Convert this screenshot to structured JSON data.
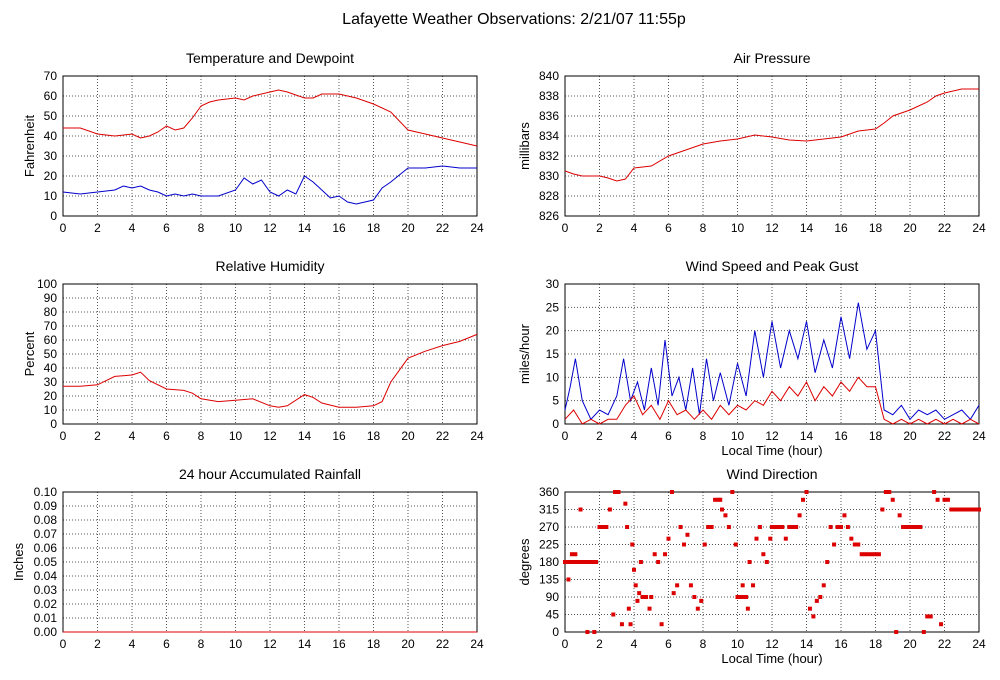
{
  "page": {
    "title": "Lafayette Weather Observations: 2/21/07 11:55p"
  },
  "chart_data": [
    {
      "id": "temp",
      "type": "line",
      "title": "Temperature and Dewpoint",
      "xlabel": "",
      "ylabel": "Fahrenheit",
      "xlim": [
        0,
        24
      ],
      "ylim": [
        0,
        70
      ],
      "xticks": [
        0,
        2,
        4,
        6,
        8,
        10,
        12,
        14,
        16,
        18,
        20,
        22,
        24
      ],
      "yticks": [
        0,
        10,
        20,
        30,
        40,
        50,
        60,
        70
      ],
      "ytick_labels": [
        "0",
        "10",
        "20",
        "30",
        "40",
        "50",
        "60",
        "70"
      ],
      "grid": true,
      "series": [
        {
          "color": "#dd0000",
          "x": [
            0,
            1,
            2,
            3,
            4,
            4.5,
            5,
            5.5,
            6,
            6.5,
            7,
            7.5,
            8,
            8.5,
            9,
            10,
            10.5,
            11,
            12,
            12.5,
            13,
            14,
            14.5,
            15,
            16,
            17,
            18,
            19,
            20,
            21,
            22,
            23,
            24
          ],
          "y": [
            44,
            44,
            41,
            40,
            41,
            39,
            40,
            42,
            45,
            43,
            44,
            49,
            55,
            57,
            58,
            59,
            58,
            60,
            62,
            63,
            62,
            59,
            59,
            61,
            61,
            59,
            56,
            52,
            43,
            41,
            39,
            37,
            35
          ]
        },
        {
          "color": "#0000cc",
          "x": [
            0,
            1,
            2,
            3,
            3.5,
            4,
            4.5,
            5,
            5.5,
            6,
            6.5,
            7,
            7.5,
            8,
            9,
            10,
            10.5,
            11,
            11.5,
            12,
            12.5,
            13,
            13.5,
            14,
            14.5,
            15,
            15.5,
            16,
            16.5,
            17,
            17.5,
            18,
            18.5,
            19,
            20,
            21,
            22,
            23,
            24
          ],
          "y": [
            12,
            11,
            12,
            13,
            15,
            14,
            15,
            13,
            12,
            10,
            11,
            10,
            11,
            10,
            10,
            13,
            19,
            16,
            18,
            12,
            10,
            13,
            11,
            20,
            17,
            13,
            9,
            10,
            7,
            6,
            7,
            8,
            14,
            17,
            24,
            24,
            25,
            24,
            24
          ]
        }
      ]
    },
    {
      "id": "press",
      "type": "line",
      "title": "Air Pressure",
      "xlabel": "",
      "ylabel": "millibars",
      "xlim": [
        0,
        24
      ],
      "ylim": [
        826,
        840
      ],
      "xticks": [
        0,
        2,
        4,
        6,
        8,
        10,
        12,
        14,
        16,
        18,
        20,
        22,
        24
      ],
      "yticks": [
        826,
        828,
        830,
        832,
        834,
        836,
        838,
        840
      ],
      "ytick_labels": [
        "826",
        "828",
        "830",
        "832",
        "834",
        "836",
        "838",
        "840"
      ],
      "grid": true,
      "series": [
        {
          "color": "#dd0000",
          "x": [
            0,
            0.5,
            1,
            2,
            2.5,
            3,
            3.5,
            4,
            5,
            6,
            7,
            8,
            9,
            10,
            11,
            12,
            13,
            14,
            15,
            16,
            17,
            18,
            18.5,
            19,
            20,
            21,
            21.5,
            22,
            23,
            24
          ],
          "y": [
            830.5,
            830.2,
            830.0,
            830.0,
            829.8,
            829.5,
            829.7,
            830.8,
            831.0,
            832.0,
            832.6,
            833.2,
            833.5,
            833.7,
            834.1,
            833.9,
            833.6,
            833.5,
            833.7,
            833.9,
            834.5,
            834.7,
            835.3,
            836.0,
            836.6,
            837.4,
            838.0,
            838.3,
            838.7,
            838.7
          ]
        }
      ]
    },
    {
      "id": "rh",
      "type": "line",
      "title": "Relative Humidity",
      "xlabel": "",
      "ylabel": "Percent",
      "xlim": [
        0,
        24
      ],
      "ylim": [
        0,
        100
      ],
      "xticks": [
        0,
        2,
        4,
        6,
        8,
        10,
        12,
        14,
        16,
        18,
        20,
        22,
        24
      ],
      "yticks": [
        0,
        10,
        20,
        30,
        40,
        50,
        60,
        70,
        80,
        90,
        100
      ],
      "ytick_labels": [
        "0",
        "10",
        "20",
        "30",
        "40",
        "50",
        "60",
        "70",
        "80",
        "90",
        "100"
      ],
      "grid": true,
      "series": [
        {
          "color": "#dd0000",
          "x": [
            0,
            1,
            2,
            3,
            4,
            4.5,
            5,
            6,
            7,
            7.5,
            8,
            9,
            10,
            11,
            12,
            12.5,
            13,
            14,
            14.5,
            15,
            16,
            17,
            18,
            18.5,
            19,
            20,
            21,
            22,
            23,
            24
          ],
          "y": [
            27,
            27,
            28,
            34,
            35,
            37,
            31,
            25,
            24,
            22,
            18,
            16,
            17,
            18,
            13,
            12,
            13,
            21,
            19,
            15,
            12,
            12,
            13,
            16,
            30,
            47,
            52,
            56,
            59,
            64
          ]
        }
      ]
    },
    {
      "id": "wind",
      "type": "line",
      "title": "Wind Speed and Peak Gust",
      "xlabel": "Local Time (hour)",
      "ylabel": "miles/hour",
      "xlim": [
        0,
        24
      ],
      "ylim": [
        0,
        30
      ],
      "xticks": [
        0,
        2,
        4,
        6,
        8,
        10,
        12,
        14,
        16,
        18,
        20,
        22,
        24
      ],
      "yticks": [
        0,
        5,
        10,
        15,
        20,
        25,
        30
      ],
      "ytick_labels": [
        "0",
        "5",
        "10",
        "15",
        "20",
        "25",
        "30"
      ],
      "grid": true,
      "series": [
        {
          "color": "#0000cc",
          "x": [
            0,
            0.3,
            0.6,
            1,
            1.5,
            2,
            2.5,
            3,
            3.4,
            3.8,
            4.2,
            4.6,
            5,
            5.4,
            5.8,
            6.2,
            6.6,
            7,
            7.4,
            7.8,
            8.2,
            8.6,
            9,
            9.5,
            10,
            10.5,
            11,
            11.5,
            12,
            12.5,
            13,
            13.5,
            14,
            14.5,
            15,
            15.5,
            16,
            16.5,
            17,
            17.5,
            18,
            18.5,
            19,
            19.5,
            20,
            20.5,
            21,
            21.5,
            22,
            22.5,
            23,
            23.5,
            24
          ],
          "y": [
            3,
            8,
            14,
            5,
            1,
            3,
            2,
            6,
            14,
            5,
            9,
            3,
            12,
            4,
            18,
            6,
            10,
            3,
            12,
            2,
            14,
            5,
            11,
            4,
            13,
            6,
            20,
            10,
            22,
            12,
            20,
            14,
            22,
            11,
            18,
            12,
            23,
            14,
            26,
            16,
            20,
            3,
            2,
            4,
            1,
            3,
            2,
            3,
            1,
            2,
            3,
            1,
            4
          ]
        },
        {
          "color": "#dd0000",
          "x": [
            0,
            0.5,
            1,
            1.5,
            2,
            2.5,
            3,
            3.5,
            4,
            4.5,
            5,
            5.5,
            6,
            6.5,
            7,
            7.5,
            8,
            8.5,
            9,
            9.5,
            10,
            10.5,
            11,
            11.5,
            12,
            12.5,
            13,
            13.5,
            14,
            14.5,
            15,
            15.5,
            16,
            16.5,
            17,
            17.5,
            18,
            18.5,
            19,
            19.5,
            20,
            20.5,
            21,
            21.5,
            22,
            22.5,
            23,
            23.5,
            24
          ],
          "y": [
            1,
            3,
            0,
            1,
            0,
            1,
            1,
            4,
            6,
            2,
            4,
            1,
            5,
            2,
            3,
            1,
            3,
            1,
            4,
            2,
            4,
            3,
            5,
            4,
            7,
            5,
            8,
            6,
            9,
            5,
            8,
            6,
            9,
            7,
            10,
            8,
            8,
            1,
            0,
            1,
            0,
            1,
            0,
            1,
            0,
            1,
            0,
            1,
            0
          ]
        }
      ]
    },
    {
      "id": "rain",
      "type": "line",
      "title": "24 hour Accumulated Rainfall",
      "xlabel": "",
      "ylabel": "Inches",
      "xlim": [
        0,
        24
      ],
      "ylim": [
        0,
        0.1
      ],
      "xticks": [
        0,
        2,
        4,
        6,
        8,
        10,
        12,
        14,
        16,
        18,
        20,
        22,
        24
      ],
      "yticks": [
        0,
        0.01,
        0.02,
        0.03,
        0.04,
        0.05,
        0.06,
        0.07,
        0.08,
        0.09,
        0.1
      ],
      "ytick_labels": [
        "0.00",
        "0.01",
        "0.02",
        "0.03",
        "0.04",
        "0.05",
        "0.06",
        "0.07",
        "0.08",
        "0.09",
        "0.10"
      ],
      "grid": true,
      "series": [
        {
          "color": "#dd0000",
          "x": [
            0,
            24
          ],
          "y": [
            0,
            0
          ]
        }
      ]
    },
    {
      "id": "dir",
      "type": "scatter",
      "title": "Wind Direction",
      "xlabel": "Local Time (hour)",
      "ylabel": "degrees",
      "xlim": [
        0,
        24
      ],
      "ylim": [
        0,
        360
      ],
      "xticks": [
        0,
        2,
        4,
        6,
        8,
        10,
        12,
        14,
        16,
        18,
        20,
        22,
        24
      ],
      "yticks": [
        0,
        45,
        90,
        135,
        180,
        225,
        270,
        315,
        360
      ],
      "ytick_labels": [
        "0",
        "45",
        "90",
        "135",
        "180",
        "225",
        "270",
        "315",
        "360"
      ],
      "grid": true,
      "series": [
        {
          "color": "#dd0000",
          "x": [
            0,
            0.1,
            0.2,
            0.3,
            0.4,
            0.5,
            0.6,
            0.7,
            0.8,
            0.9,
            1.0,
            1.1,
            1.2,
            1.3,
            1.4,
            1.5,
            1.6,
            1.7,
            1.8,
            0.2,
            0.4,
            0.6,
            0.9,
            1.3,
            1.7,
            2.0,
            2.1,
            2.2,
            2.3,
            2.4,
            2.6,
            2.8,
            2.9,
            3.0,
            3.1,
            3.3,
            3.5,
            3.6,
            3.7,
            3.8,
            3.9,
            4.0,
            4.1,
            4.2,
            4.3,
            4.4,
            4.5,
            4.7,
            4.9,
            5.0,
            5.2,
            5.4,
            5.6,
            5.8,
            6.0,
            6.2,
            6.3,
            6.5,
            6.7,
            6.9,
            7.1,
            7.3,
            7.5,
            7.7,
            7.9,
            8.1,
            8.3,
            8.5,
            8.7,
            8.9,
            9.0,
            9.1,
            9.3,
            9.5,
            9.7,
            9.9,
            10.0,
            10.1,
            10.2,
            10.3,
            10.4,
            10.5,
            10.6,
            10.7,
            10.9,
            11.1,
            11.3,
            11.5,
            11.7,
            11.9,
            12.0,
            12.2,
            12.4,
            12.6,
            12.8,
            13.0,
            13.2,
            13.4,
            13.6,
            13.8,
            14.0,
            14.2,
            14.4,
            14.6,
            14.8,
            15.0,
            15.2,
            15.4,
            15.6,
            15.8,
            16.0,
            16.2,
            16.4,
            16.6,
            16.8,
            17.0,
            17.2,
            17.4,
            17.6,
            17.8,
            18.0,
            18.2,
            18.4,
            18.6,
            18.8,
            19.0,
            19.2,
            19.4,
            19.6,
            19.8,
            20.0,
            20.2,
            20.4,
            20.6,
            20.8,
            21.0,
            21.2,
            21.4,
            21.6,
            21.8,
            22.0,
            22.2,
            22.4,
            22.6,
            22.8,
            23.0,
            23.2,
            23.4,
            23.6,
            23.8,
            24.0
          ],
          "y": [
            180,
            180,
            180,
            180,
            180,
            180,
            180,
            180,
            180,
            180,
            180,
            180,
            180,
            180,
            180,
            180,
            180,
            180,
            180,
            135,
            200,
            200,
            315,
            0,
            0,
            270,
            270,
            270,
            270,
            270,
            315,
            45,
            360,
            360,
            360,
            20,
            330,
            270,
            60,
            20,
            225,
            160,
            120,
            80,
            100,
            180,
            90,
            90,
            60,
            90,
            200,
            180,
            20,
            200,
            240,
            360,
            100,
            120,
            270,
            225,
            250,
            120,
            90,
            60,
            80,
            225,
            270,
            270,
            340,
            340,
            340,
            315,
            300,
            270,
            360,
            225,
            90,
            90,
            90,
            120,
            90,
            90,
            60,
            180,
            120,
            240,
            270,
            200,
            180,
            240,
            270,
            270,
            270,
            270,
            240,
            270,
            270,
            270,
            300,
            340,
            360,
            60,
            40,
            80,
            90,
            120,
            180,
            270,
            225,
            270,
            270,
            300,
            270,
            240,
            225,
            225,
            200,
            200,
            200,
            200,
            200,
            200,
            315,
            360,
            360,
            340,
            0,
            300,
            270,
            270,
            270,
            270,
            270,
            270,
            0,
            40,
            40,
            360,
            340,
            20,
            340,
            340,
            315,
            315,
            315,
            315,
            315,
            315,
            315,
            315,
            315
          ]
        }
      ]
    }
  ]
}
